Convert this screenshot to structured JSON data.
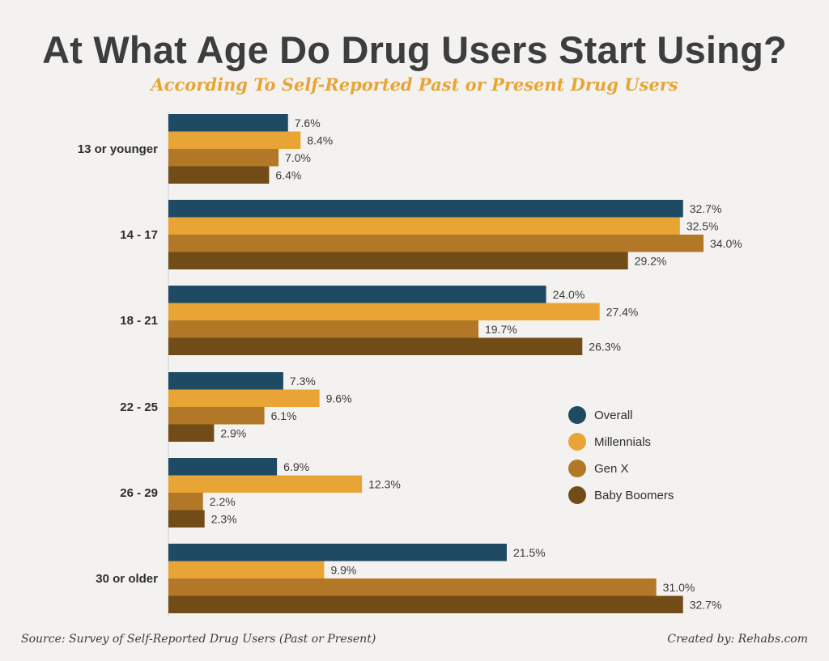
{
  "chart_data": {
    "type": "bar",
    "orientation": "horizontal",
    "title": "At What Age Do Drug Users Start Using?",
    "subtitle": "According To Self-Reported Past or Present Drug Users",
    "categories": [
      "13 or younger",
      "14 - 17",
      "18 - 21",
      "22 - 25",
      "26 - 29",
      "30 or older"
    ],
    "series": [
      {
        "name": "Overall",
        "color": "#1e4a63",
        "values": [
          7.6,
          32.7,
          24.0,
          7.3,
          6.9,
          21.5
        ]
      },
      {
        "name": "Millennials",
        "color": "#e8a536",
        "values": [
          8.4,
          32.5,
          27.4,
          9.6,
          12.3,
          9.9
        ]
      },
      {
        "name": "Gen X",
        "color": "#b27828",
        "values": [
          7.0,
          34.0,
          19.7,
          6.1,
          2.2,
          31.0
        ]
      },
      {
        "name": "Baby Boomers",
        "color": "#714c16",
        "values": [
          6.4,
          29.2,
          26.3,
          2.9,
          2.3,
          32.7
        ]
      }
    ],
    "value_suffix": "%",
    "xlim": [
      0,
      34.0
    ],
    "legend_position": "right-middle",
    "grid": false
  },
  "footer": {
    "source": "Source: Survey of Self-Reported Drug Users (Past or Present)",
    "credit": "Created by: Rehabs.com"
  }
}
